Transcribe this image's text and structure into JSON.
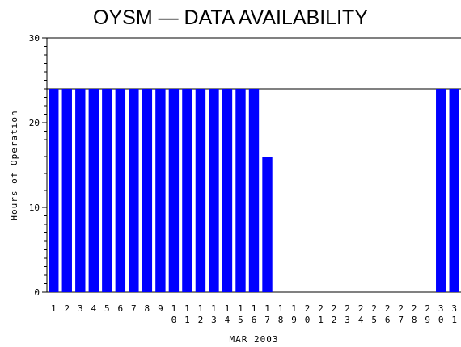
{
  "chart_data": {
    "type": "bar",
    "title": "OYSM — DATA AVAILABILITY",
    "xlabel": "MAR 2003",
    "ylabel": "Hours of Operation",
    "ylim": [
      0,
      30
    ],
    "yticks": [
      0,
      10,
      20,
      30
    ],
    "reference_line": 24,
    "grid": false,
    "categories": [
      "1",
      "2",
      "3",
      "4",
      "5",
      "6",
      "7",
      "8",
      "9",
      "10",
      "11",
      "12",
      "13",
      "14",
      "15",
      "16",
      "17",
      "18",
      "19",
      "20",
      "21",
      "22",
      "23",
      "24",
      "25",
      "26",
      "27",
      "28",
      "29",
      "30",
      "31"
    ],
    "values": [
      24,
      24,
      24,
      24,
      24,
      24,
      24,
      24,
      24,
      24,
      24,
      24,
      24,
      24,
      24,
      24,
      16,
      0,
      0,
      0,
      0,
      0,
      0,
      0,
      0,
      0,
      0,
      0,
      0,
      24,
      24
    ],
    "bar_color": "#0000ff"
  }
}
